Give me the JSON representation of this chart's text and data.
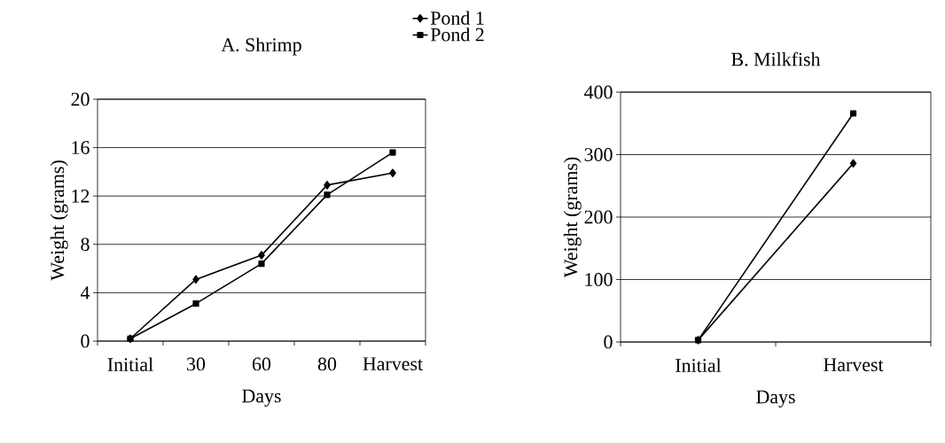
{
  "chart_data": [
    {
      "type": "line",
      "title": "A. Shrimp",
      "xlabel": "Days",
      "ylabel": "Weight (grams)",
      "categories": [
        "Initial",
        "30",
        "60",
        "80",
        "Harvest"
      ],
      "series": [
        {
          "name": "Pond 1",
          "color": "#000000",
          "marker": "diamond",
          "values": [
            0.2,
            5.1,
            7.1,
            12.9,
            13.9
          ]
        },
        {
          "name": "Pond 2",
          "color": "#000000",
          "marker": "square",
          "values": [
            0.2,
            3.1,
            6.4,
            12.1,
            15.6
          ]
        }
      ],
      "ylim": [
        0,
        20
      ],
      "yticks": [
        0,
        4,
        8,
        12,
        16,
        20
      ],
      "grid": "y",
      "legend": "top right",
      "line_style": "solid"
    },
    {
      "type": "line",
      "title": "B. Milkfish",
      "xlabel": "Days",
      "ylabel": "Weight (grams)",
      "categories": [
        "Initial",
        "Harvest"
      ],
      "series": [
        {
          "color": "#000000",
          "marker": "diamond",
          "values": [
            3,
            286
          ]
        },
        {
          "color": "#000000",
          "marker": "square",
          "values": [
            3,
            366
          ]
        }
      ],
      "ylim": [
        0,
        400
      ],
      "yticks": [
        0,
        100,
        200,
        300,
        400
      ],
      "grid": "y",
      "line_style": "solid"
    }
  ]
}
